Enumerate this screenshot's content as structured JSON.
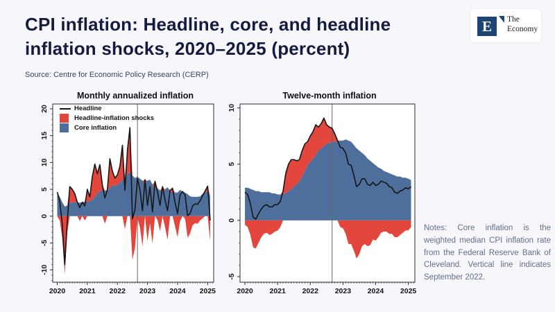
{
  "slide": {
    "title_line1": "CPI inflation: Headline, core, and headline",
    "title_line2": "inflation shocks, 2020–2025 (percent)",
    "source": "Source: Centre for Economic Policy Research (CERP)",
    "notes": "Notes: Core inflation is the weighted median CPI inflation rate from the Federal Reserve Bank of Cleveland. Vertical line indicates September 2022."
  },
  "logo": {
    "mark": "E",
    "name_line1": "The",
    "name_line2": "Economy",
    "box_color": "#1d4677"
  },
  "colors": {
    "background": "#f7f7fb",
    "title": "#141b40",
    "headline_line": "#151515",
    "shock_fill": "#e2463c",
    "core_fill": "#4e6f9c",
    "axis": "#2a2a2a",
    "vline": "#666666",
    "plot_bg": "#ffffff"
  },
  "chart_data": [
    {
      "type": "area",
      "title": "Monthly annualized inflation",
      "x_start_year": 2020,
      "x_step": "monthly",
      "xlim": [
        2019.85,
        2025.2
      ],
      "ylim": [
        -12.3,
        20.9
      ],
      "yticks": [
        -10,
        -5,
        0,
        5,
        10,
        15,
        20
      ],
      "xticks": [
        2020,
        2021,
        2022,
        2023,
        2024,
        2025
      ],
      "vline_x": 2022.667,
      "vline_label": "September 2022",
      "legend": [
        "Headline",
        "Headline-inflation shocks",
        "Core inflation"
      ],
      "shock_definition": "headline minus core",
      "series": [
        {
          "name": "Headline",
          "role": "line",
          "values": [
            4.5,
            2.8,
            -1.5,
            -9.0,
            -1.0,
            5.5,
            5.0,
            4.2,
            2.6,
            1.6,
            2.6,
            1.9,
            5.0,
            3.6,
            7.4,
            9.7,
            7.9,
            9.6,
            5.8,
            3.4,
            4.9,
            10.7,
            8.4,
            7.1,
            7.7,
            9.3,
            13.2,
            4.8,
            12.3,
            16.5,
            -0.5,
            1.2,
            7.0,
            4.9,
            1.0,
            6.8,
            2.0,
            5.5,
            0.8,
            6.5,
            4.5,
            2.0,
            5.5,
            3.0,
            1.0,
            4.8,
            5.2,
            2.5,
            0.5,
            4.0,
            4.6,
            3.9,
            0.1,
            0.5,
            1.9,
            2.3,
            2.2,
            2.9,
            3.8,
            4.7,
            5.6,
            -0.8
          ]
        },
        {
          "name": "Core inflation",
          "role": "area",
          "values": [
            4.0,
            3.6,
            2.6,
            1.8,
            2.0,
            2.4,
            2.6,
            2.6,
            2.5,
            2.5,
            2.6,
            2.7,
            2.7,
            2.8,
            3.1,
            3.6,
            4.2,
            4.6,
            4.9,
            4.8,
            4.7,
            5.3,
            5.8,
            5.6,
            5.9,
            6.2,
            6.8,
            7.2,
            7.8,
            8.2,
            7.6,
            7.1,
            7.4,
            7.0,
            6.6,
            6.2,
            6.6,
            6.8,
            5.9,
            5.2,
            5.2,
            4.8,
            4.6,
            5.0,
            5.4,
            4.6,
            4.5,
            4.4,
            4.4,
            4.9,
            4.5,
            4.4,
            4.1,
            3.7,
            3.6,
            3.6,
            3.6,
            3.7,
            4.2,
            4.5,
            4.6,
            3.8
          ]
        }
      ]
    },
    {
      "type": "area",
      "title": "Twelve-month inflation",
      "x_start_year": 2020,
      "x_step": "monthly",
      "xlim": [
        2019.85,
        2025.2
      ],
      "ylim": [
        -5.5,
        10.35
      ],
      "yticks": [
        -5,
        0,
        5,
        10
      ],
      "xticks": [
        2020,
        2021,
        2022,
        2023,
        2024,
        2025
      ],
      "vline_x": 2022.667,
      "vline_label": "September 2022",
      "legend": [],
      "shock_definition": "headline minus core",
      "series": [
        {
          "name": "Headline",
          "role": "line",
          "values": [
            2.5,
            2.3,
            1.5,
            0.3,
            0.1,
            0.6,
            1.0,
            1.3,
            1.4,
            1.2,
            1.2,
            1.4,
            1.4,
            1.7,
            2.6,
            4.2,
            5.0,
            5.4,
            5.4,
            5.3,
            5.4,
            6.2,
            6.8,
            7.0,
            7.5,
            7.9,
            8.5,
            8.3,
            8.6,
            9.1,
            8.5,
            8.3,
            8.2,
            7.7,
            7.1,
            6.5,
            6.4,
            6.0,
            5.0,
            4.9,
            4.0,
            3.0,
            3.2,
            3.7,
            3.7,
            3.2,
            3.1,
            3.4,
            3.1,
            3.2,
            3.5,
            3.4,
            3.3,
            3.0,
            2.9,
            2.5,
            2.4,
            2.6,
            2.7,
            2.9,
            2.8,
            3.0
          ]
        },
        {
          "name": "Core inflation",
          "role": "area",
          "values": [
            2.9,
            2.9,
            2.8,
            2.7,
            2.6,
            2.6,
            2.5,
            2.5,
            2.5,
            2.5,
            2.4,
            2.4,
            2.3,
            2.3,
            2.4,
            2.4,
            2.6,
            2.8,
            3.0,
            3.2,
            3.5,
            3.9,
            4.4,
            4.9,
            5.2,
            5.5,
            5.8,
            6.2,
            6.4,
            6.6,
            6.8,
            6.9,
            7.0,
            7.0,
            7.0,
            7.1,
            7.1,
            7.2,
            7.1,
            7.0,
            6.7,
            6.4,
            6.2,
            6.0,
            5.8,
            5.5,
            5.3,
            5.1,
            4.9,
            4.7,
            4.6,
            4.4,
            4.3,
            4.2,
            4.1,
            4.0,
            3.9,
            3.9,
            3.8,
            3.8,
            3.7,
            3.6
          ]
        }
      ]
    }
  ]
}
